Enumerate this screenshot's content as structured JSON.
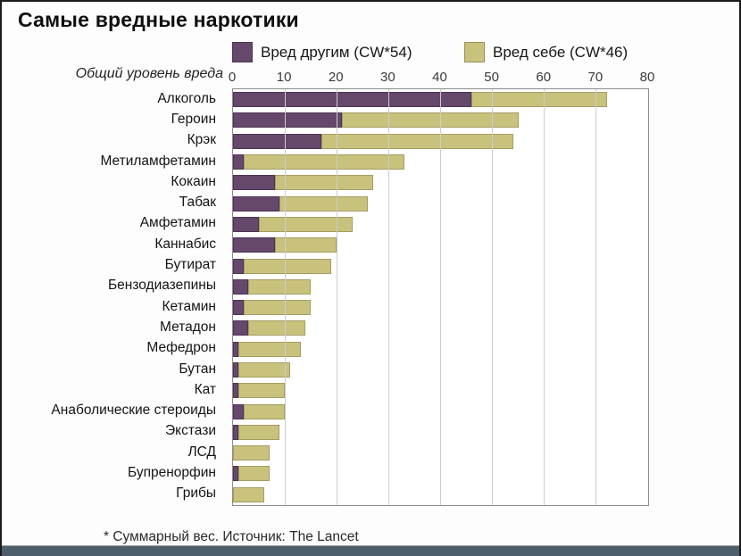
{
  "title": "Самые вредные наркотики",
  "axis_caption": "Общий уровень вреда",
  "footer_note": "* Суммарный вес. Источник: The Lancet",
  "colors": {
    "harm_to_others": "#66486c",
    "harm_to_self": "#c9c27d",
    "gridline": "#cccccc",
    "bottom_bar": "#4d5f6b"
  },
  "legend": [
    {
      "label": "Вред другим (CW*54)",
      "color": "#66486c"
    },
    {
      "label": "Вред себе (CW*46)",
      "color": "#c9c27d"
    }
  ],
  "chart_data": {
    "type": "bar",
    "orientation": "horizontal",
    "stacked": true,
    "title": "Самые вредные наркотики",
    "xlabel": "Общий уровень вреда",
    "xlim": [
      0,
      80
    ],
    "x_ticks": [
      0,
      10,
      20,
      30,
      40,
      50,
      60,
      70,
      80
    ],
    "grid": true,
    "legend_position": "top",
    "categories": [
      "Алкоголь",
      "Героин",
      "Крэк",
      "Метиламфетамин",
      "Кокаин",
      "Табак",
      "Амфетамин",
      "Каннабис",
      "Бутират",
      "Бензодиазепины",
      "Кетамин",
      "Метадон",
      "Мефедрон",
      "Бутан",
      "Кат",
      "Анаболические стероиды",
      "Экстази",
      "ЛСД",
      "Бупренорфин",
      "Грибы"
    ],
    "series": [
      {
        "name": "Вред другим (CW*54)",
        "color": "#66486c",
        "values": [
          46,
          21,
          17,
          2,
          8,
          9,
          5,
          8,
          2,
          3,
          2,
          3,
          1,
          1,
          1,
          2,
          1,
          0,
          1,
          0
        ]
      },
      {
        "name": "Вред себе (CW*46)",
        "color": "#c9c27d",
        "values": [
          26,
          34,
          37,
          31,
          19,
          17,
          18,
          12,
          17,
          12,
          13,
          11,
          12,
          10,
          9,
          8,
          8,
          7,
          6,
          6
        ]
      }
    ],
    "totals": [
      72,
      55,
      54,
      33,
      27,
      26,
      23,
      20,
      19,
      15,
      15,
      14,
      13,
      11,
      10,
      10,
      9,
      7,
      7,
      6
    ]
  }
}
